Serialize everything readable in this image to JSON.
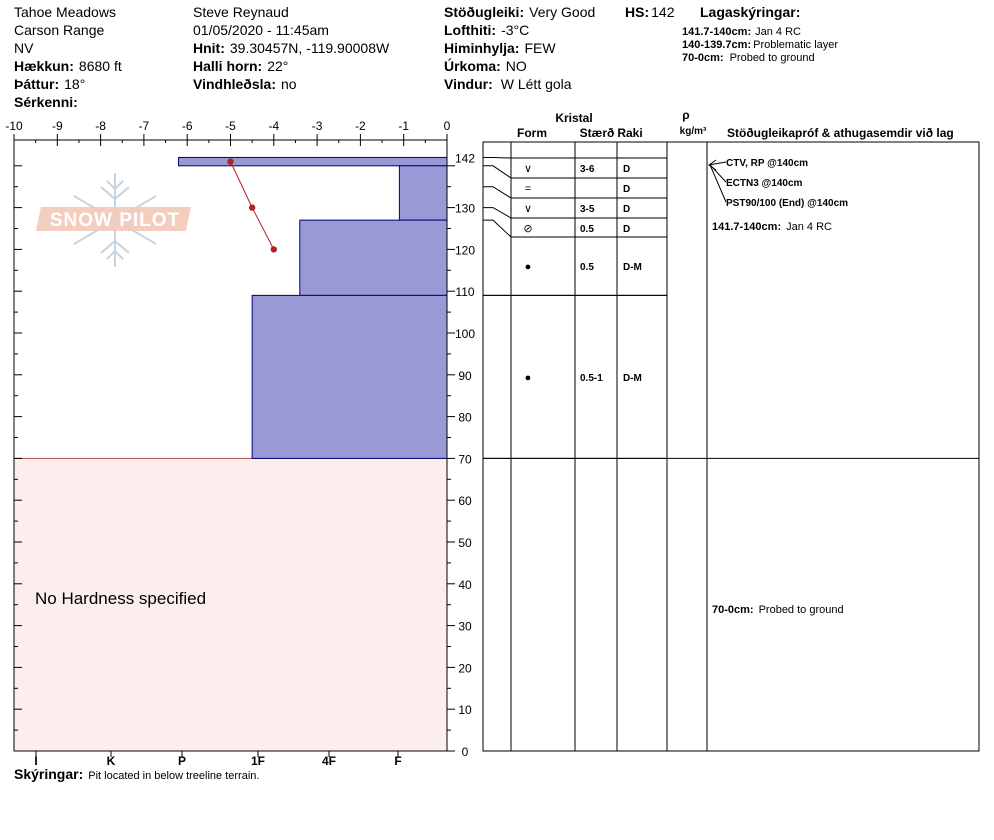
{
  "header": {
    "location": "Tahoe Meadows",
    "range": "Carson Range",
    "aspect": "NV",
    "elevation_label": "Hækkun:",
    "elevation_value": "8680 ft",
    "slope_label": "Þáttur:",
    "slope_value": "18°",
    "features_label": "Sérkenni:",
    "observer": "Steve Reynaud",
    "datetime": "01/05/2020 - 11:45am",
    "coords_label": "Hnit:",
    "coords_value": "39.30457N, -119.90008W",
    "angle_label": "Halli horn:",
    "angle_value": "22°",
    "wind_loading_label": "Vindhleðsla:",
    "wind_loading_value": "no",
    "stability_label": "Stöðugleiki:",
    "stability_value": "Very Good",
    "hs_label": "HS:",
    "hs_value": "142",
    "air_temp_label": "Lofthiti:",
    "air_temp_value": "-3°C",
    "sky_label": "Himinhylja:",
    "sky_value": "FEW",
    "precip_label": "Úrkoma:",
    "precip_value": "NO",
    "wind_label": "Vindur:",
    "wind_value": "W Létt gola",
    "legend_title": "Lagaskýringar:",
    "legend": [
      {
        "depth": "141.7-140cm:",
        "text": "Jan 4 RC"
      },
      {
        "depth": "140-139.7cm:",
        "text": "Problematic layer"
      },
      {
        "depth": "70-0cm:",
        "text": "Probed to ground"
      }
    ]
  },
  "watermark": "SNOW PILOT",
  "no_hardness_text": "No Hardness specified",
  "comments_label": "Skýringar:",
  "comments_text": "Pit located in below treeline terrain.",
  "columns": {
    "kristal": "Kristal",
    "form": "Form",
    "size": "Stærð",
    "moisture": "Raki",
    "rho": "ρ",
    "density_unit": "kg/m³",
    "tests": "Stöðugleikapróf & athugasemdir við lag"
  },
  "tests": [
    {
      "text": "CTV, RP @140cm",
      "depth": 140
    },
    {
      "text": "ECTN3 @140cm",
      "depth": 140
    },
    {
      "text": "PST90/100 (End) @140cm",
      "depth": 140
    }
  ],
  "layer_notes": [
    {
      "depth_label": "141.7-140cm:",
      "text": "Jan 4 RC",
      "top": 141.7
    },
    {
      "depth_label": "70-0cm:",
      "text": "Probed to ground",
      "top": 70
    }
  ],
  "chart_data": {
    "type": "area",
    "x_temp_ticks": [
      "-10",
      "-9",
      "-8",
      "-7",
      "-6",
      "-5",
      "-4",
      "-3",
      "-2",
      "-1",
      "0"
    ],
    "hardness_ticks": [
      "I",
      "K",
      "P",
      "1F",
      "4F",
      "F"
    ],
    "depth_ticks": [
      0,
      10,
      20,
      30,
      40,
      50,
      60,
      70,
      80,
      90,
      100,
      110,
      120,
      130
    ],
    "hs": 142,
    "ylim": [
      0,
      142
    ],
    "temperature_profile": [
      {
        "depth": 141,
        "temp": -5.0
      },
      {
        "depth": 130,
        "temp": -4.5
      },
      {
        "depth": 120,
        "temp": -4.0
      }
    ],
    "hardness_layers": [
      {
        "top": 142,
        "bottom": 140,
        "temp_extent": -6.2
      },
      {
        "top": 140,
        "bottom": 127,
        "temp_extent": -1.1
      },
      {
        "top": 127,
        "bottom": 109,
        "temp_extent": -3.4
      },
      {
        "top": 109,
        "bottom": 70,
        "temp_extent": -4.5
      }
    ],
    "no_hardness_range": [
      0,
      70
    ],
    "strata": [
      {
        "top": 142,
        "bottom": 140,
        "form": "∨",
        "size": "3-6",
        "moisture": "D"
      },
      {
        "top": 140,
        "bottom": 135,
        "form": "=",
        "size": "",
        "moisture": "D"
      },
      {
        "top": 135,
        "bottom": 130,
        "form": "∨",
        "size": "3-5",
        "moisture": "D"
      },
      {
        "top": 130,
        "bottom": 125,
        "form": "⊘",
        "size": "0.5",
        "moisture": "D"
      },
      {
        "top": 125,
        "bottom": 109,
        "form": "●",
        "size": "0.5",
        "moisture": "D-M"
      },
      {
        "top": 109,
        "bottom": 70,
        "form": "●",
        "size": "0.5-1",
        "moisture": "D-M"
      },
      {
        "top": 70,
        "bottom": 0,
        "form": "",
        "size": "",
        "moisture": ""
      }
    ],
    "colors": {
      "hardness_fill": "#9999d6",
      "hardness_stroke": "#000080",
      "no_hardness_fill": "#fdeeee",
      "temp_line": "#b22222"
    }
  }
}
